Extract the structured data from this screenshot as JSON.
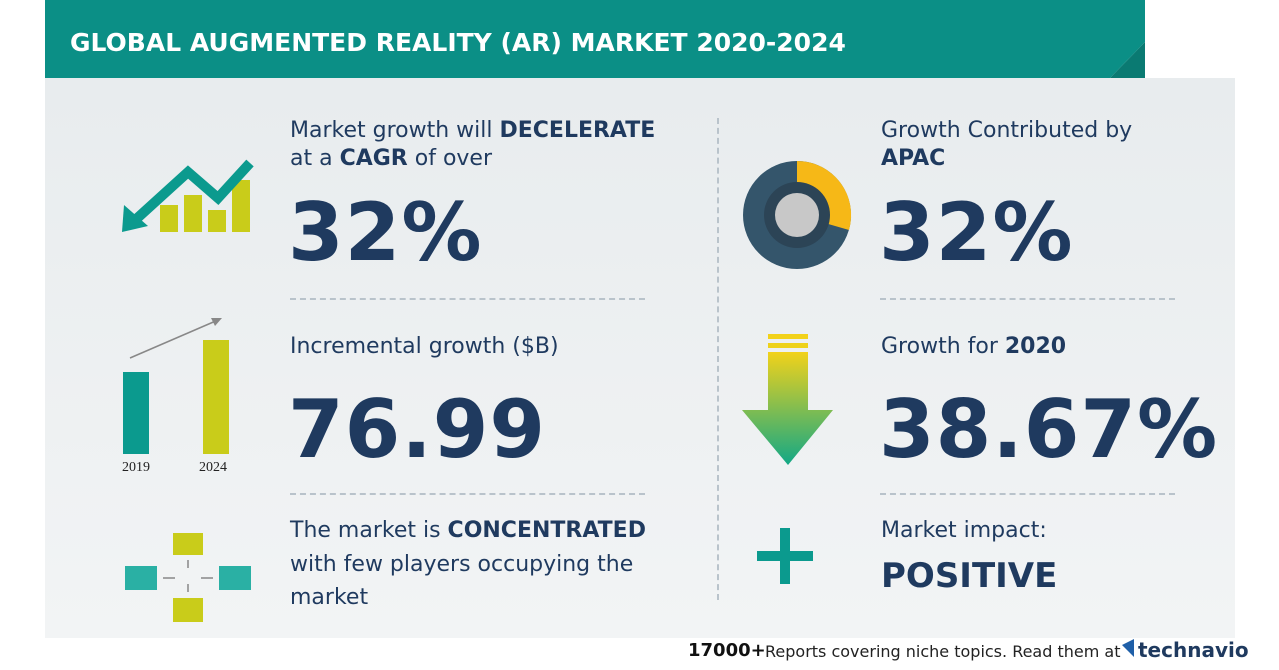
{
  "header": {
    "title": "GLOBAL AUGMENTED REALITY (AR) MARKET 2020-2024"
  },
  "left": [
    {
      "text": [
        "Market growth will ",
        "DECELERATE"
      ],
      "text2": [
        "at a ",
        "CAGR",
        " of over"
      ],
      "value": "32%"
    },
    {
      "text": [
        "Incremental growth ($B)"
      ],
      "value": "76.99",
      "icon_labels": [
        "2019",
        "2024"
      ]
    },
    {
      "text": [
        "The market is ",
        "CONCENTRATED"
      ],
      "text2": [
        "with few players occupying the"
      ],
      "text3": [
        "market"
      ]
    }
  ],
  "right": [
    {
      "text": [
        "Growth Contributed by"
      ],
      "text2": [
        "APAC"
      ],
      "value": "32%"
    },
    {
      "text": [
        "Growth for ",
        "2020"
      ],
      "value": "38.67%"
    },
    {
      "text": [
        "Market impact:"
      ],
      "value": "POSITIVE"
    }
  ],
  "footer": {
    "count": "17000+",
    "text": "Reports covering niche topics. Read them at",
    "brand": "technavio"
  }
}
